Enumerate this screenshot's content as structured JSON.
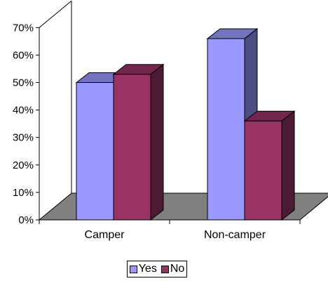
{
  "chart_data": {
    "type": "bar",
    "style": "3d-clustered-column",
    "categories": [
      "Camper",
      "Non-camper"
    ],
    "series": [
      {
        "name": "Yes",
        "values": [
          0.5,
          0.66
        ],
        "color": "#9999FF"
      },
      {
        "name": "No",
        "values": [
          0.53,
          0.36
        ],
        "color": "#993366"
      }
    ],
    "yticks": [
      "0%",
      "10%",
      "20%",
      "30%",
      "40%",
      "50%",
      "60%",
      "70%"
    ],
    "ylim": [
      0,
      0.7
    ],
    "grid": false,
    "legend_position": "bottom",
    "floor_color": "#808080",
    "legend": {
      "yes": "Yes",
      "no": "No"
    }
  }
}
